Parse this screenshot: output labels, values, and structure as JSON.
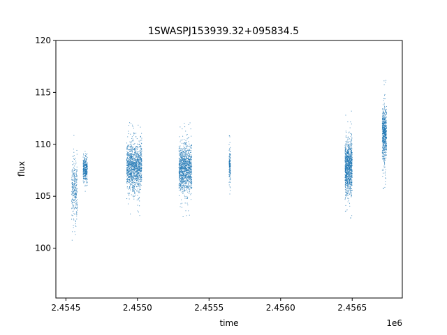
{
  "chart_data": {
    "type": "scatter",
    "title": "1SWASPJ153939.32+095834.5",
    "xlabel": "time",
    "ylabel": "flux",
    "x_offset_label": "1e6",
    "xlim": [
      2454430,
      2456850
    ],
    "ylim": [
      95.2,
      120
    ],
    "xticks": [
      2454500,
      2455000,
      2455500,
      2456000,
      2456500
    ],
    "xtick_labels": [
      "2.4545",
      "2.4550",
      "2.4555",
      "2.4560",
      "2.4565"
    ],
    "yticks": [
      100,
      105,
      110,
      115,
      120
    ],
    "ytick_labels": [
      "100",
      "105",
      "110",
      "115",
      "120"
    ],
    "grid": false,
    "legend": "none",
    "point_color": "#1f77b4",
    "series": [
      {
        "clusters": [
          {
            "x_start": 2454540,
            "x_end": 2454580,
            "y_center": 105.5,
            "y_spread": 3.2,
            "n": 280
          },
          {
            "x_start": 2454620,
            "x_end": 2454650,
            "y_center": 107.6,
            "y_spread": 1.4,
            "n": 320
          },
          {
            "x_start": 2454925,
            "x_end": 2455030,
            "y_center": 107.8,
            "y_spread": 2.6,
            "n": 1200
          },
          {
            "x_start": 2455290,
            "x_end": 2455380,
            "y_center": 107.6,
            "y_spread": 2.6,
            "n": 1100
          },
          {
            "x_start": 2455640,
            "x_end": 2455650,
            "y_center": 108.0,
            "y_spread": 1.6,
            "n": 150
          },
          {
            "x_start": 2456450,
            "x_end": 2456500,
            "y_center": 107.8,
            "y_spread": 2.8,
            "n": 1000
          },
          {
            "x_start": 2456710,
            "x_end": 2456740,
            "y_center": 111.0,
            "y_spread": 3.0,
            "n": 600
          }
        ]
      }
    ]
  }
}
